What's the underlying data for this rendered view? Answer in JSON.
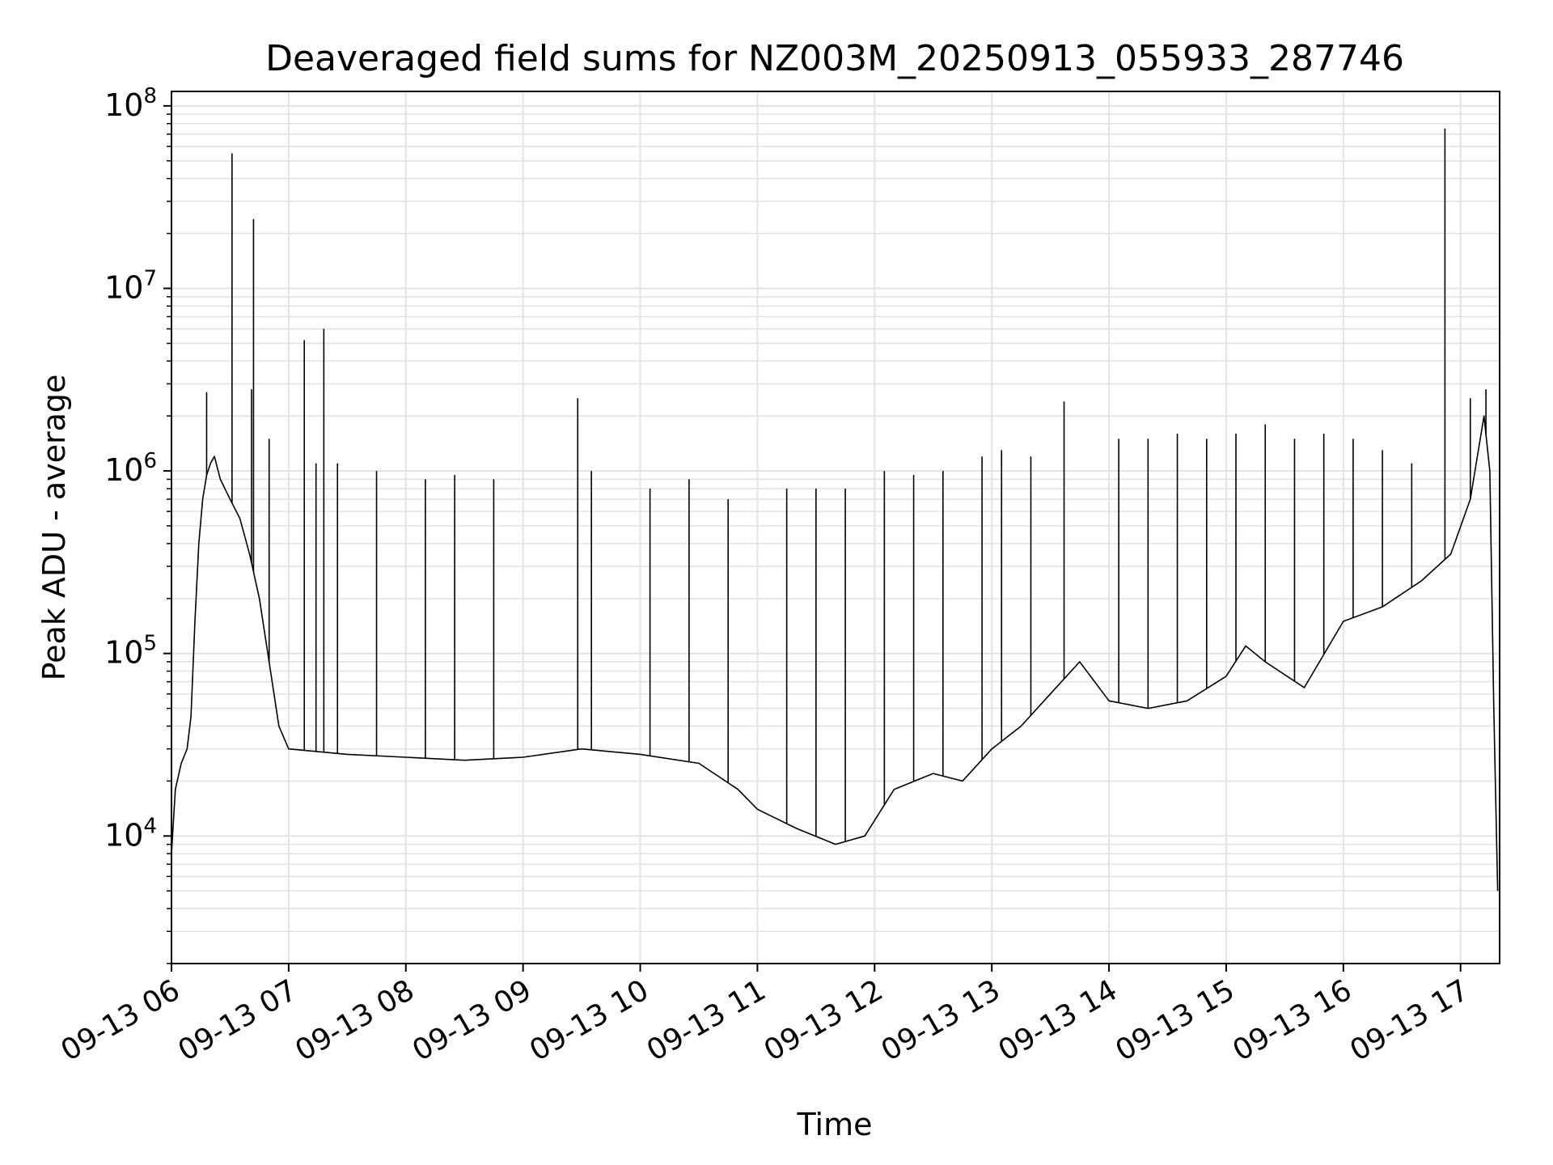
{
  "chart_data": {
    "type": "line",
    "title": "Deaveraged field sums for NZ003M_20250913_055933_287746",
    "xlabel": "Time",
    "ylabel": "Peak ADU - average",
    "yscale": "log",
    "xlim": [
      "2025-09-13T06:00",
      "2025-09-13T17:20"
    ],
    "ylim": [
      2000,
      120000000
    ],
    "grid": true,
    "line_color": "#000000",
    "x_tick_labels": [
      "09-13 06",
      "09-13 07",
      "09-13 08",
      "09-13 09",
      "09-13 10",
      "09-13 11",
      "09-13 12",
      "09-13 13",
      "09-13 14",
      "09-13 15",
      "09-13 16",
      "09-13 17"
    ],
    "y_ticks": [
      {
        "value": 10000,
        "base": "10",
        "exp": "4"
      },
      {
        "value": 100000,
        "base": "10",
        "exp": "5"
      },
      {
        "value": 1000000,
        "base": "10",
        "exp": "6"
      },
      {
        "value": 10000000,
        "base": "10",
        "exp": "7"
      },
      {
        "value": 100000000,
        "base": "10",
        "exp": "8"
      }
    ],
    "series": [
      {
        "points": [
          [
            "2025-09-13T06:00",
            8000
          ],
          [
            "2025-09-13T06:02",
            18000
          ],
          [
            "2025-09-13T06:05",
            25000
          ],
          [
            "2025-09-13T06:08",
            30000
          ],
          [
            "2025-09-13T06:10",
            45000
          ],
          [
            "2025-09-13T06:12",
            150000
          ],
          [
            "2025-09-13T06:14",
            400000
          ],
          [
            "2025-09-13T06:16",
            700000
          ],
          [
            "2025-09-13T06:18",
            950000
          ],
          [
            "2025-09-13T06:20",
            1100000
          ],
          [
            "2025-09-13T06:22",
            1200000
          ],
          [
            "2025-09-13T06:25",
            900000
          ],
          [
            "2025-09-13T06:30",
            700000
          ],
          [
            "2025-09-13T06:35",
            550000
          ],
          [
            "2025-09-13T06:40",
            350000
          ],
          [
            "2025-09-13T06:45",
            200000
          ],
          [
            "2025-09-13T06:50",
            90000
          ],
          [
            "2025-09-13T06:55",
            40000
          ],
          [
            "2025-09-13T07:00",
            30000
          ],
          [
            "2025-09-13T07:30",
            28000
          ],
          [
            "2025-09-13T08:00",
            27000
          ],
          [
            "2025-09-13T08:30",
            26000
          ],
          [
            "2025-09-13T09:00",
            27000
          ],
          [
            "2025-09-13T09:30",
            30000
          ],
          [
            "2025-09-13T10:00",
            28000
          ],
          [
            "2025-09-13T10:30",
            25000
          ],
          [
            "2025-09-13T10:50",
            18000
          ],
          [
            "2025-09-13T11:00",
            14000
          ],
          [
            "2025-09-13T11:20",
            11000
          ],
          [
            "2025-09-13T11:40",
            9000
          ],
          [
            "2025-09-13T11:55",
            10000
          ],
          [
            "2025-09-13T12:10",
            18000
          ],
          [
            "2025-09-13T12:30",
            22000
          ],
          [
            "2025-09-13T12:45",
            20000
          ],
          [
            "2025-09-13T13:00",
            30000
          ],
          [
            "2025-09-13T13:15",
            40000
          ],
          [
            "2025-09-13T13:30",
            60000
          ],
          [
            "2025-09-13T13:45",
            90000
          ],
          [
            "2025-09-13T14:00",
            55000
          ],
          [
            "2025-09-13T14:20",
            50000
          ],
          [
            "2025-09-13T14:40",
            55000
          ],
          [
            "2025-09-13T15:00",
            75000
          ],
          [
            "2025-09-13T15:10",
            110000
          ],
          [
            "2025-09-13T15:20",
            90000
          ],
          [
            "2025-09-13T15:40",
            65000
          ],
          [
            "2025-09-13T16:00",
            150000
          ],
          [
            "2025-09-13T16:20",
            180000
          ],
          [
            "2025-09-13T16:40",
            250000
          ],
          [
            "2025-09-13T16:55",
            350000
          ],
          [
            "2025-09-13T17:05",
            700000
          ],
          [
            "2025-09-13T17:12",
            2000000
          ],
          [
            "2025-09-13T17:15",
            1000000
          ],
          [
            "2025-09-13T17:17",
            50000
          ],
          [
            "2025-09-13T17:19",
            5000
          ]
        ],
        "spikes": [
          [
            "2025-09-13T06:18",
            2700000
          ],
          [
            "2025-09-13T06:31",
            55000000
          ],
          [
            "2025-09-13T06:41",
            2800000
          ],
          [
            "2025-09-13T06:42",
            24000000
          ],
          [
            "2025-09-13T06:50",
            1500000
          ],
          [
            "2025-09-13T07:08",
            5200000
          ],
          [
            "2025-09-13T07:14",
            1100000
          ],
          [
            "2025-09-13T07:18",
            6000000
          ],
          [
            "2025-09-13T07:25",
            1100000
          ],
          [
            "2025-09-13T07:45",
            1000000
          ],
          [
            "2025-09-13T08:10",
            900000
          ],
          [
            "2025-09-13T08:25",
            950000
          ],
          [
            "2025-09-13T08:45",
            900000
          ],
          [
            "2025-09-13T09:28",
            2500000
          ],
          [
            "2025-09-13T09:35",
            1000000
          ],
          [
            "2025-09-13T10:05",
            800000
          ],
          [
            "2025-09-13T10:25",
            900000
          ],
          [
            "2025-09-13T10:45",
            700000
          ],
          [
            "2025-09-13T11:15",
            800000
          ],
          [
            "2025-09-13T11:30",
            800000
          ],
          [
            "2025-09-13T11:45",
            800000
          ],
          [
            "2025-09-13T12:05",
            1000000
          ],
          [
            "2025-09-13T12:20",
            950000
          ],
          [
            "2025-09-13T12:35",
            1000000
          ],
          [
            "2025-09-13T12:55",
            1200000
          ],
          [
            "2025-09-13T13:05",
            1300000
          ],
          [
            "2025-09-13T13:20",
            1200000
          ],
          [
            "2025-09-13T13:37",
            2400000
          ],
          [
            "2025-09-13T14:05",
            1500000
          ],
          [
            "2025-09-13T14:20",
            1500000
          ],
          [
            "2025-09-13T14:35",
            1600000
          ],
          [
            "2025-09-13T14:50",
            1500000
          ],
          [
            "2025-09-13T15:05",
            1600000
          ],
          [
            "2025-09-13T15:20",
            1800000
          ],
          [
            "2025-09-13T15:35",
            1500000
          ],
          [
            "2025-09-13T15:50",
            1600000
          ],
          [
            "2025-09-13T16:05",
            1500000
          ],
          [
            "2025-09-13T16:20",
            1300000
          ],
          [
            "2025-09-13T16:35",
            1100000
          ],
          [
            "2025-09-13T16:52",
            75000000
          ],
          [
            "2025-09-13T17:05",
            2500000
          ],
          [
            "2025-09-13T17:13",
            2800000
          ]
        ]
      }
    ]
  }
}
